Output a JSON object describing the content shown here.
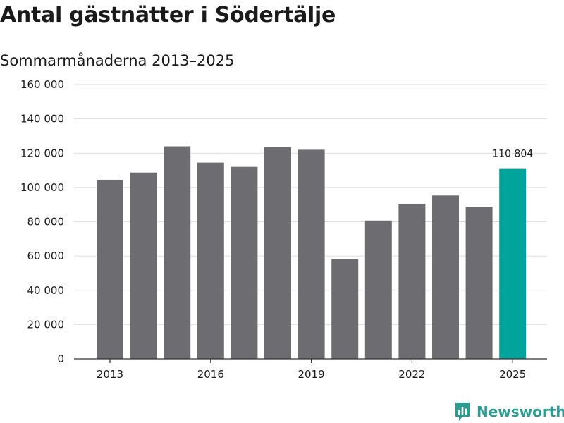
{
  "title": "Antal gästnätter i Södertälje",
  "subtitle": "Sommarmånaderna 2013–2025",
  "brand": {
    "name": "Newsworthy",
    "icon": "newsworthy-logo-icon",
    "color": "#2a9d93"
  },
  "chart_data": {
    "type": "bar",
    "title": "Antal gästnätter i Södertälje",
    "subtitle": "Sommarmånaderna 2013–2025",
    "categories": [
      "2013",
      "2014",
      "2015",
      "2016",
      "2017",
      "2018",
      "2019",
      "2020",
      "2021",
      "2022",
      "2023",
      "2024",
      "2025"
    ],
    "values": [
      104500,
      108700,
      124000,
      114500,
      112000,
      123500,
      122000,
      58000,
      80700,
      90500,
      95300,
      88700,
      110804
    ],
    "ylim": [
      0,
      160000
    ],
    "yticks": [
      0,
      20000,
      40000,
      60000,
      80000,
      100000,
      120000,
      140000,
      160000
    ],
    "ytick_labels": [
      "0",
      "20 000",
      "40 000",
      "60 000",
      "80 000",
      "100 000",
      "120 000",
      "140 000",
      "160 000"
    ],
    "xtick_labels": [
      "2013",
      "2016",
      "2019",
      "2022",
      "2025"
    ],
    "highlight": {
      "category": "2025",
      "label": "110 804"
    },
    "colors": {
      "bar": "#6d6c70",
      "highlight": "#00a49a",
      "grid": "#dedede",
      "axis": "#333333"
    },
    "grid": true,
    "legend": "none"
  }
}
